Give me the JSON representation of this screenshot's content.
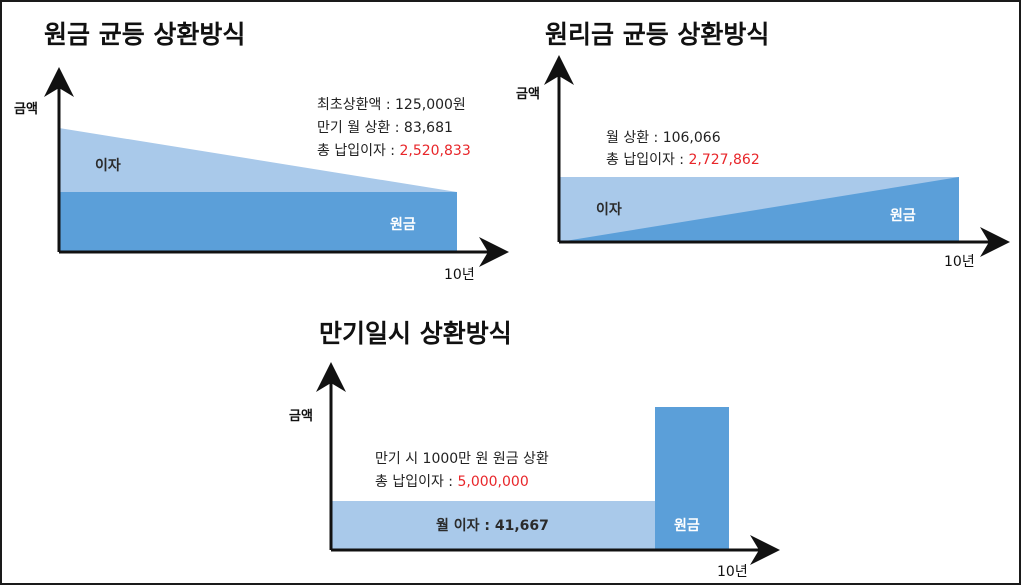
{
  "diagram1": {
    "title": "원금 균등 상환방식",
    "ylabel": "금액",
    "xlabel": "10년",
    "interest_label": "이자",
    "principal_label": "원금",
    "info_line1": "최초상환액 : 125,000원",
    "info_line2": "만기 월 상환 : 83,681",
    "info_line3_prefix": "총 납입이자 : ",
    "info_line3_value": "2,520,833"
  },
  "diagram2": {
    "title": "원리금 균등 상환방식",
    "ylabel": "금액",
    "xlabel": "10년",
    "interest_label": "이자",
    "principal_label": "원금",
    "info_line1": "월 상환 : 106,066",
    "info_line2_prefix": "총 납입이자 : ",
    "info_line2_value": "2,727,862"
  },
  "diagram3": {
    "title": "만기일시 상환방식",
    "ylabel": "금액",
    "xlabel": "10년",
    "interest_label": "월 이자 : 41,667",
    "principal_label": "원금",
    "info_line1": "만기 시 1000만 원 원금 상환",
    "info_line2_prefix": "총 납입이자 : ",
    "info_line2_value": "5,000,000"
  },
  "colors": {
    "light_blue": "#a9c9ea",
    "dark_blue": "#5b9fd9",
    "highlight_red": "#e8262a"
  }
}
